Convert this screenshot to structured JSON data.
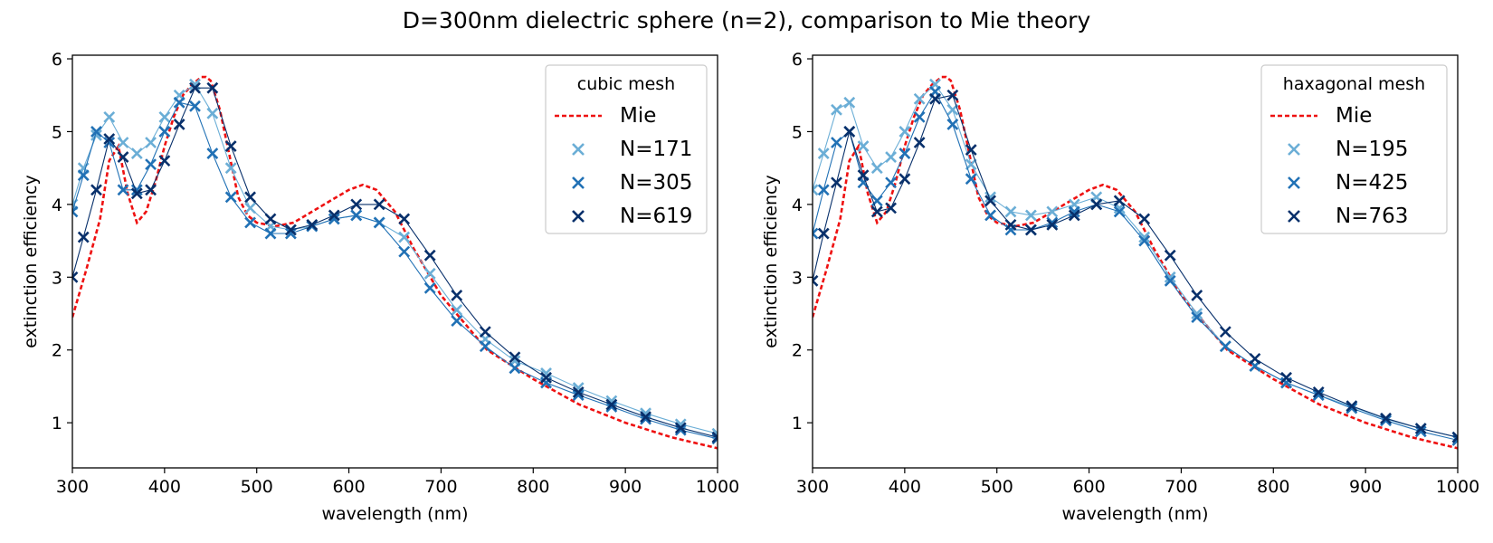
{
  "figure": {
    "suptitle": "D=300nm dielectric sphere (n=2), comparison to Mie theory"
  },
  "colors": {
    "mie": "#ee1111",
    "series_light": "#6baed6",
    "series_mid": "#2171b5",
    "series_dark": "#08306b",
    "axis": "#000000",
    "legend_border": "#cccccc"
  },
  "chart_data": [
    {
      "type": "line",
      "xlabel": "wavelength (nm)",
      "ylabel": "extinction efficiency",
      "xlim": [
        300,
        1000
      ],
      "ylim": [
        0.38,
        6.05
      ],
      "xticks": [
        300,
        400,
        500,
        600,
        700,
        800,
        900,
        1000
      ],
      "xtick_labels": [
        "300",
        "400",
        "500",
        "600",
        "700",
        "800",
        "900",
        "1000"
      ],
      "yticks": [
        1,
        2,
        3,
        4,
        5,
        6
      ],
      "ytick_labels": [
        "1",
        "2",
        "3",
        "4",
        "5",
        "6"
      ],
      "grid": false,
      "legend": {
        "title": "cubic mesh",
        "position": "top-right"
      },
      "mie": {
        "name": "Mie",
        "x": [
          300,
          315,
          330,
          340,
          350,
          360,
          370,
          380,
          390,
          400,
          410,
          420,
          430,
          440,
          445,
          450,
          460,
          470,
          480,
          490,
          500,
          520,
          540,
          560,
          580,
          600,
          615,
          630,
          650,
          670,
          700,
          750,
          800,
          850,
          900,
          950,
          1000
        ],
        "y": [
          2.45,
          3.1,
          3.8,
          4.6,
          4.8,
          4.15,
          3.75,
          3.9,
          4.3,
          4.8,
          5.2,
          5.5,
          5.65,
          5.75,
          5.75,
          5.7,
          5.3,
          4.7,
          4.1,
          3.85,
          3.75,
          3.7,
          3.75,
          3.9,
          4.05,
          4.2,
          4.27,
          4.2,
          3.9,
          3.4,
          2.75,
          2.0,
          1.6,
          1.25,
          1.0,
          0.8,
          0.65
        ]
      },
      "series": [
        {
          "name": "N=171",
          "x": [
            300,
            312,
            326,
            340,
            355,
            370,
            385,
            400,
            416,
            433,
            452,
            472,
            493,
            515,
            537,
            560,
            584,
            608,
            633,
            660,
            688,
            717,
            748,
            780,
            814,
            849,
            885,
            922,
            960,
            1000
          ],
          "y": [
            4.0,
            4.5,
            4.95,
            5.2,
            4.85,
            4.7,
            4.85,
            5.2,
            5.5,
            5.65,
            5.25,
            4.5,
            3.95,
            3.7,
            3.65,
            3.7,
            3.8,
            3.85,
            3.75,
            3.55,
            3.05,
            2.55,
            2.15,
            1.85,
            1.68,
            1.48,
            1.3,
            1.13,
            0.98,
            0.85
          ]
        },
        {
          "name": "N=305",
          "x": [
            300,
            312,
            326,
            340,
            355,
            370,
            385,
            400,
            416,
            433,
            452,
            472,
            493,
            515,
            537,
            560,
            584,
            608,
            633,
            660,
            688,
            717,
            748,
            780,
            814,
            849,
            885,
            922,
            960,
            1000
          ],
          "y": [
            3.9,
            4.4,
            5.0,
            4.85,
            4.2,
            4.2,
            4.55,
            5.0,
            5.4,
            5.35,
            4.7,
            4.1,
            3.75,
            3.6,
            3.6,
            3.7,
            3.8,
            3.85,
            3.75,
            3.35,
            2.85,
            2.4,
            2.05,
            1.75,
            1.55,
            1.38,
            1.22,
            1.05,
            0.9,
            0.78
          ]
        },
        {
          "name": "N=619",
          "x": [
            300,
            312,
            326,
            340,
            355,
            370,
            385,
            400,
            416,
            433,
            452,
            472,
            493,
            515,
            537,
            560,
            584,
            608,
            633,
            660,
            688,
            717,
            748,
            780,
            814,
            849,
            885,
            922,
            960,
            1000
          ],
          "y": [
            3.0,
            3.55,
            4.2,
            4.9,
            4.65,
            4.15,
            4.2,
            4.6,
            5.1,
            5.6,
            5.6,
            4.8,
            4.1,
            3.8,
            3.65,
            3.72,
            3.85,
            4.0,
            4.0,
            3.8,
            3.3,
            2.75,
            2.25,
            1.9,
            1.62,
            1.42,
            1.25,
            1.08,
            0.93,
            0.8
          ]
        }
      ]
    },
    {
      "type": "line",
      "xlabel": "wavelength (nm)",
      "ylabel": "extinction efficiency",
      "xlim": [
        300,
        1000
      ],
      "ylim": [
        0.38,
        6.05
      ],
      "xticks": [
        300,
        400,
        500,
        600,
        700,
        800,
        900,
        1000
      ],
      "xtick_labels": [
        "300",
        "400",
        "500",
        "600",
        "700",
        "800",
        "900",
        "1000"
      ],
      "yticks": [
        1,
        2,
        3,
        4,
        5,
        6
      ],
      "ytick_labels": [
        "1",
        "2",
        "3",
        "4",
        "5",
        "6"
      ],
      "grid": false,
      "legend": {
        "title": "haxagonal mesh",
        "position": "top-right"
      },
      "mie": {
        "name": "Mie",
        "x": [
          300,
          315,
          330,
          340,
          350,
          360,
          370,
          380,
          390,
          400,
          410,
          420,
          430,
          440,
          445,
          450,
          460,
          470,
          480,
          490,
          500,
          520,
          540,
          560,
          580,
          600,
          615,
          630,
          650,
          670,
          700,
          750,
          800,
          850,
          900,
          950,
          1000
        ],
        "y": [
          2.45,
          3.1,
          3.8,
          4.6,
          4.8,
          4.15,
          3.75,
          3.9,
          4.3,
          4.8,
          5.2,
          5.5,
          5.65,
          5.75,
          5.75,
          5.7,
          5.3,
          4.7,
          4.1,
          3.85,
          3.75,
          3.7,
          3.75,
          3.9,
          4.05,
          4.2,
          4.27,
          4.2,
          3.9,
          3.4,
          2.75,
          2.0,
          1.6,
          1.25,
          1.0,
          0.8,
          0.65
        ]
      },
      "series": [
        {
          "name": "N=195",
          "x": [
            300,
            312,
            326,
            340,
            355,
            370,
            385,
            400,
            416,
            433,
            452,
            472,
            493,
            515,
            537,
            560,
            584,
            608,
            633,
            660,
            688,
            717,
            748,
            780,
            814,
            849,
            885,
            922,
            960,
            1000
          ],
          "y": [
            4.2,
            4.7,
            5.3,
            5.4,
            4.8,
            4.5,
            4.65,
            5.0,
            5.45,
            5.65,
            5.3,
            4.55,
            4.1,
            3.9,
            3.85,
            3.9,
            4.0,
            4.1,
            3.95,
            3.55,
            3.0,
            2.5,
            2.05,
            1.78,
            1.55,
            1.38,
            1.22,
            1.05,
            0.92,
            0.8
          ]
        },
        {
          "name": "N=425",
          "x": [
            300,
            312,
            326,
            340,
            355,
            370,
            385,
            400,
            416,
            433,
            452,
            472,
            493,
            515,
            537,
            560,
            584,
            608,
            633,
            660,
            688,
            717,
            748,
            780,
            814,
            849,
            885,
            922,
            960,
            1000
          ],
          "y": [
            3.6,
            4.2,
            4.85,
            5.0,
            4.3,
            4.05,
            4.3,
            4.7,
            5.2,
            5.55,
            5.1,
            4.35,
            3.85,
            3.65,
            3.65,
            3.75,
            3.9,
            4.0,
            3.9,
            3.5,
            2.95,
            2.45,
            2.05,
            1.78,
            1.55,
            1.38,
            1.2,
            1.03,
            0.88,
            0.76
          ]
        },
        {
          "name": "N=763",
          "x": [
            300,
            312,
            326,
            340,
            355,
            370,
            385,
            400,
            416,
            433,
            452,
            472,
            493,
            515,
            537,
            560,
            584,
            608,
            633,
            660,
            688,
            717,
            748,
            780,
            814,
            849,
            885,
            922,
            960,
            1000
          ],
          "y": [
            2.95,
            3.6,
            4.3,
            5.0,
            4.4,
            3.9,
            3.95,
            4.35,
            4.85,
            5.45,
            5.5,
            4.75,
            4.05,
            3.72,
            3.65,
            3.72,
            3.85,
            4.0,
            4.05,
            3.8,
            3.3,
            2.75,
            2.25,
            1.88,
            1.62,
            1.42,
            1.23,
            1.06,
            0.92,
            0.8
          ]
        }
      ]
    }
  ]
}
